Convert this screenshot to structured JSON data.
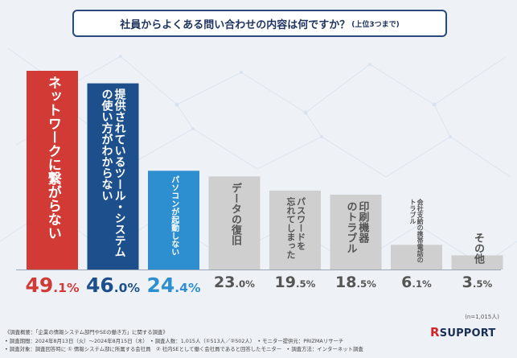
{
  "title": {
    "main": "社員からよくある問い合わせの内容は何ですか？",
    "sub": "(上位3つまで)"
  },
  "chart_data": {
    "type": "bar",
    "title": "社員からよくある問い合わせの内容は何ですか？(上位3つまで)",
    "unit": "%",
    "ylim": [
      0,
      50
    ],
    "categories": [
      "ネットワークに繋がらない",
      "提供されているツール・システムの使い方がわからない",
      "パソコンが起動しない",
      "データの復旧",
      "パスワードを忘れてしまった",
      "印刷機器のトラブル",
      "会社支給の携帯電話のトラブル",
      "その他"
    ],
    "category_lines": [
      [
        "ネットワークに繋がらない"
      ],
      [
        "提供されているツール・システム",
        "の使い方がわからない"
      ],
      [
        "パソコンが起動しない"
      ],
      [
        "データの復旧"
      ],
      [
        "パスワードを",
        "忘れてしまった"
      ],
      [
        "印刷機器",
        "のトラブル"
      ],
      [
        "会社支給の携帯電話の",
        "トラブル"
      ],
      [
        "その他"
      ]
    ],
    "values": [
      49.1,
      46.0,
      24.4,
      23.0,
      19.5,
      18.5,
      6.1,
      3.5
    ],
    "value_labels": [
      "49.1%",
      "46.0%",
      "24.4%",
      "23.0%",
      "19.5%",
      "18.5%",
      "6.1%",
      "3.5%"
    ],
    "colors": {
      "first": "#d23a35",
      "second": "#1d4f8c",
      "third": "#2e8fd0",
      "rest": "#cfcfcf"
    },
    "n_label": "(n=1,015人)"
  },
  "footer": {
    "line1": "《調査概要：「企業の情報システム部門やSEの働き方」に関する調査》",
    "line2": "• 調査期間：2024年8月13日（火）〜2024年8月15日（木）　• 調査人数：1,015人（①513人／②502人）　• モニター提供元：PRIZMAリサーチ",
    "line3": "• 調査対象：調査回答時に ① 情報システム部に所属する会社員　② 社内SEとして働く会社員であると回答したモニター　• 調査方法：インターネット調査"
  },
  "logo": {
    "mark": "R",
    "text": "SUPPORT"
  }
}
